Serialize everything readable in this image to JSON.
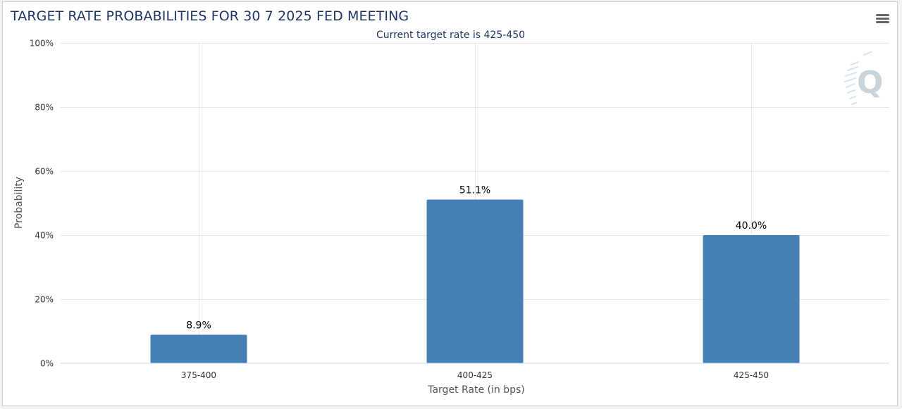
{
  "header": {
    "title": "TARGET RATE PROBABILITIES FOR 30 7 2025 FED MEETING",
    "subtitle": "Current target rate is 425-450",
    "menu_icon": "hamburger-menu-icon",
    "watermark_icon": "q-logo-icon"
  },
  "colors": {
    "bar": "#4380b6",
    "title": "#1f3566",
    "grid": "#e6e6e6"
  },
  "chart_data": {
    "type": "bar",
    "title": "TARGET RATE PROBABILITIES FOR 30 7 2025 FED MEETING",
    "subtitle": "Current target rate is 425-450",
    "xlabel": "Target Rate (in bps)",
    "ylabel": "Probability",
    "categories": [
      "375-400",
      "400-425",
      "425-450"
    ],
    "values": [
      8.9,
      51.1,
      40.0
    ],
    "data_labels": [
      "8.9%",
      "51.1%",
      "40.0%"
    ],
    "ylim": [
      0,
      100
    ],
    "yticks": [
      0,
      20,
      40,
      60,
      80,
      100
    ],
    "ytick_labels": [
      "0%",
      "20%",
      "40%",
      "60%",
      "80%",
      "100%"
    ],
    "grid": true,
    "legend": "none"
  }
}
